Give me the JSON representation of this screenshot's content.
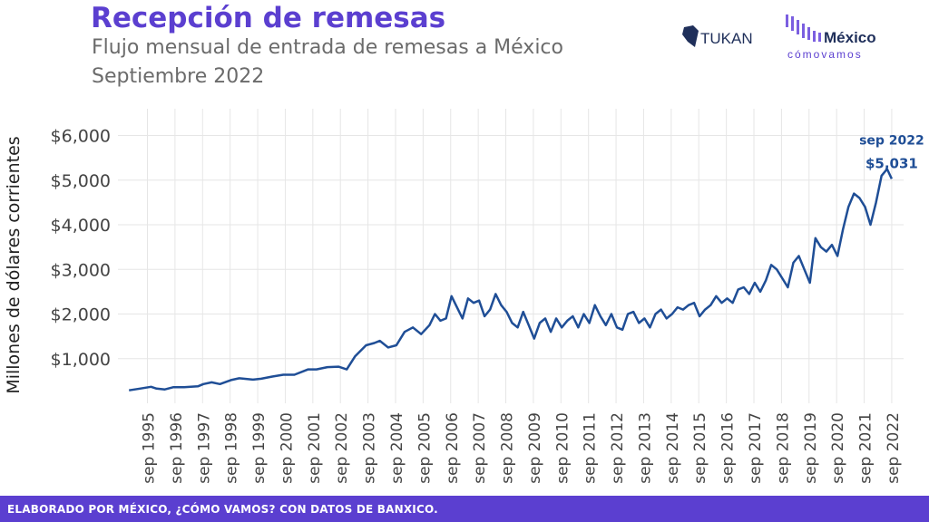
{
  "header": {
    "title": "Recepción de remesas",
    "subtitle_line1": "Flujo mensual de entrada de remesas a México",
    "subtitle_line2": "Septiembre 2022"
  },
  "logos": {
    "tukan": "TUKAN",
    "mcv_main": "México",
    "mcv_sub": "cómovamos"
  },
  "footer": {
    "text": "ELABORADO POR MÉXICO, ¿CÓMO VAMOS? CON DATOS DE BANXICO."
  },
  "colors": {
    "brand_purple": "#5b3fd0",
    "line": "#1f4e96",
    "grid": "#e6e6e6"
  },
  "chart_data": {
    "type": "line",
    "ylabel": "Millones de dólares corrientes",
    "ylim": [
      0,
      6600
    ],
    "y_ticks": [
      1000,
      2000,
      3000,
      4000,
      5000,
      6000
    ],
    "y_tick_labels": [
      "$1,000",
      "$2,000",
      "$3,000",
      "$4,000",
      "$5,000",
      "$6,000"
    ],
    "x_ticks": [
      1995.67,
      1996.67,
      1997.67,
      1998.67,
      1999.67,
      2000.67,
      2001.67,
      2002.67,
      2003.67,
      2004.67,
      2005.67,
      2006.67,
      2007.67,
      2008.67,
      2009.67,
      2010.67,
      2011.67,
      2012.67,
      2013.67,
      2014.67,
      2015.67,
      2016.67,
      2017.67,
      2018.67,
      2019.67,
      2020.67,
      2021.67,
      2022.67
    ],
    "x_tick_labels": [
      "sep 1995",
      "sep 1996",
      "sep 1997",
      "sep 1998",
      "sep 1999",
      "sep 2000",
      "sep 2001",
      "sep 2002",
      "sep 2003",
      "sep 2004",
      "sep 2005",
      "sep 2006",
      "sep 2007",
      "sep 2008",
      "sep 2009",
      "sep 2010",
      "sep 2011",
      "sep 2012",
      "sep 2013",
      "sep 2014",
      "sep 2015",
      "sep 2016",
      "sep 2017",
      "sep 2018",
      "sep 2019",
      "sep 2020",
      "sep 2021",
      "sep 2022"
    ],
    "x": [
      1995.0,
      1995.4,
      1995.8,
      1996.0,
      1996.3,
      1996.6,
      1997.0,
      1997.5,
      1997.7,
      1998.0,
      1998.3,
      1998.7,
      1999.0,
      1999.5,
      1999.8,
      2000.2,
      2000.6,
      2001.0,
      2001.5,
      2001.8,
      2002.2,
      2002.6,
      2002.9,
      2003.2,
      2003.6,
      2003.9,
      2004.1,
      2004.4,
      2004.7,
      2005.0,
      2005.3,
      2005.6,
      2005.9,
      2006.1,
      2006.3,
      2006.5,
      2006.7,
      2006.9,
      2007.1,
      2007.3,
      2007.5,
      2007.7,
      2007.9,
      2008.1,
      2008.3,
      2008.5,
      2008.7,
      2008.9,
      2009.1,
      2009.3,
      2009.5,
      2009.7,
      2009.9,
      2010.1,
      2010.3,
      2010.5,
      2010.7,
      2010.9,
      2011.1,
      2011.3,
      2011.5,
      2011.7,
      2011.9,
      2012.1,
      2012.3,
      2012.5,
      2012.7,
      2012.9,
      2013.1,
      2013.3,
      2013.5,
      2013.7,
      2013.9,
      2014.1,
      2014.3,
      2014.5,
      2014.7,
      2014.9,
      2015.1,
      2015.3,
      2015.5,
      2015.7,
      2015.9,
      2016.1,
      2016.3,
      2016.5,
      2016.7,
      2016.9,
      2017.1,
      2017.3,
      2017.5,
      2017.7,
      2017.9,
      2018.1,
      2018.3,
      2018.5,
      2018.7,
      2018.9,
      2019.1,
      2019.3,
      2019.5,
      2019.7,
      2019.9,
      2020.1,
      2020.3,
      2020.5,
      2020.7,
      2020.9,
      2021.1,
      2021.3,
      2021.5,
      2021.7,
      2021.9,
      2022.1,
      2022.3,
      2022.5,
      2022.67
    ],
    "series": [
      {
        "values": [
          290,
          330,
          370,
          330,
          310,
          360,
          360,
          380,
          430,
          470,
          430,
          520,
          560,
          530,
          550,
          600,
          640,
          640,
          760,
          760,
          810,
          820,
          760,
          1050,
          1300,
          1350,
          1400,
          1250,
          1300,
          1600,
          1700,
          1550,
          1750,
          2000,
          1850,
          1900,
          2400,
          2150,
          1900,
          2350,
          2250,
          2300,
          1950,
          2100,
          2450,
          2200,
          2050,
          1800,
          1700,
          2050,
          1750,
          1450,
          1800,
          1900,
          1600,
          1900,
          1700,
          1850,
          1950,
          1700,
          2000,
          1800,
          2200,
          1950,
          1750,
          2000,
          1700,
          1650,
          2000,
          2050,
          1800,
          1900,
          1700,
          2000,
          2100,
          1900,
          2000,
          2150,
          2100,
          2200,
          2250,
          1950,
          2100,
          2200,
          2400,
          2250,
          2350,
          2250,
          2550,
          2600,
          2450,
          2700,
          2500,
          2750,
          3100,
          3000,
          2800,
          2600,
          3150,
          3300,
          3000,
          2700,
          3700,
          3500,
          3400,
          3550,
          3300,
          3900,
          4400,
          4700,
          4600,
          4400,
          4000,
          4500,
          5100,
          5250,
          5031
        ]
      }
    ],
    "annotation": {
      "label_line1": "sep 2022",
      "label_line2": "$5,031",
      "x": 2022.67,
      "y": 5031
    }
  }
}
